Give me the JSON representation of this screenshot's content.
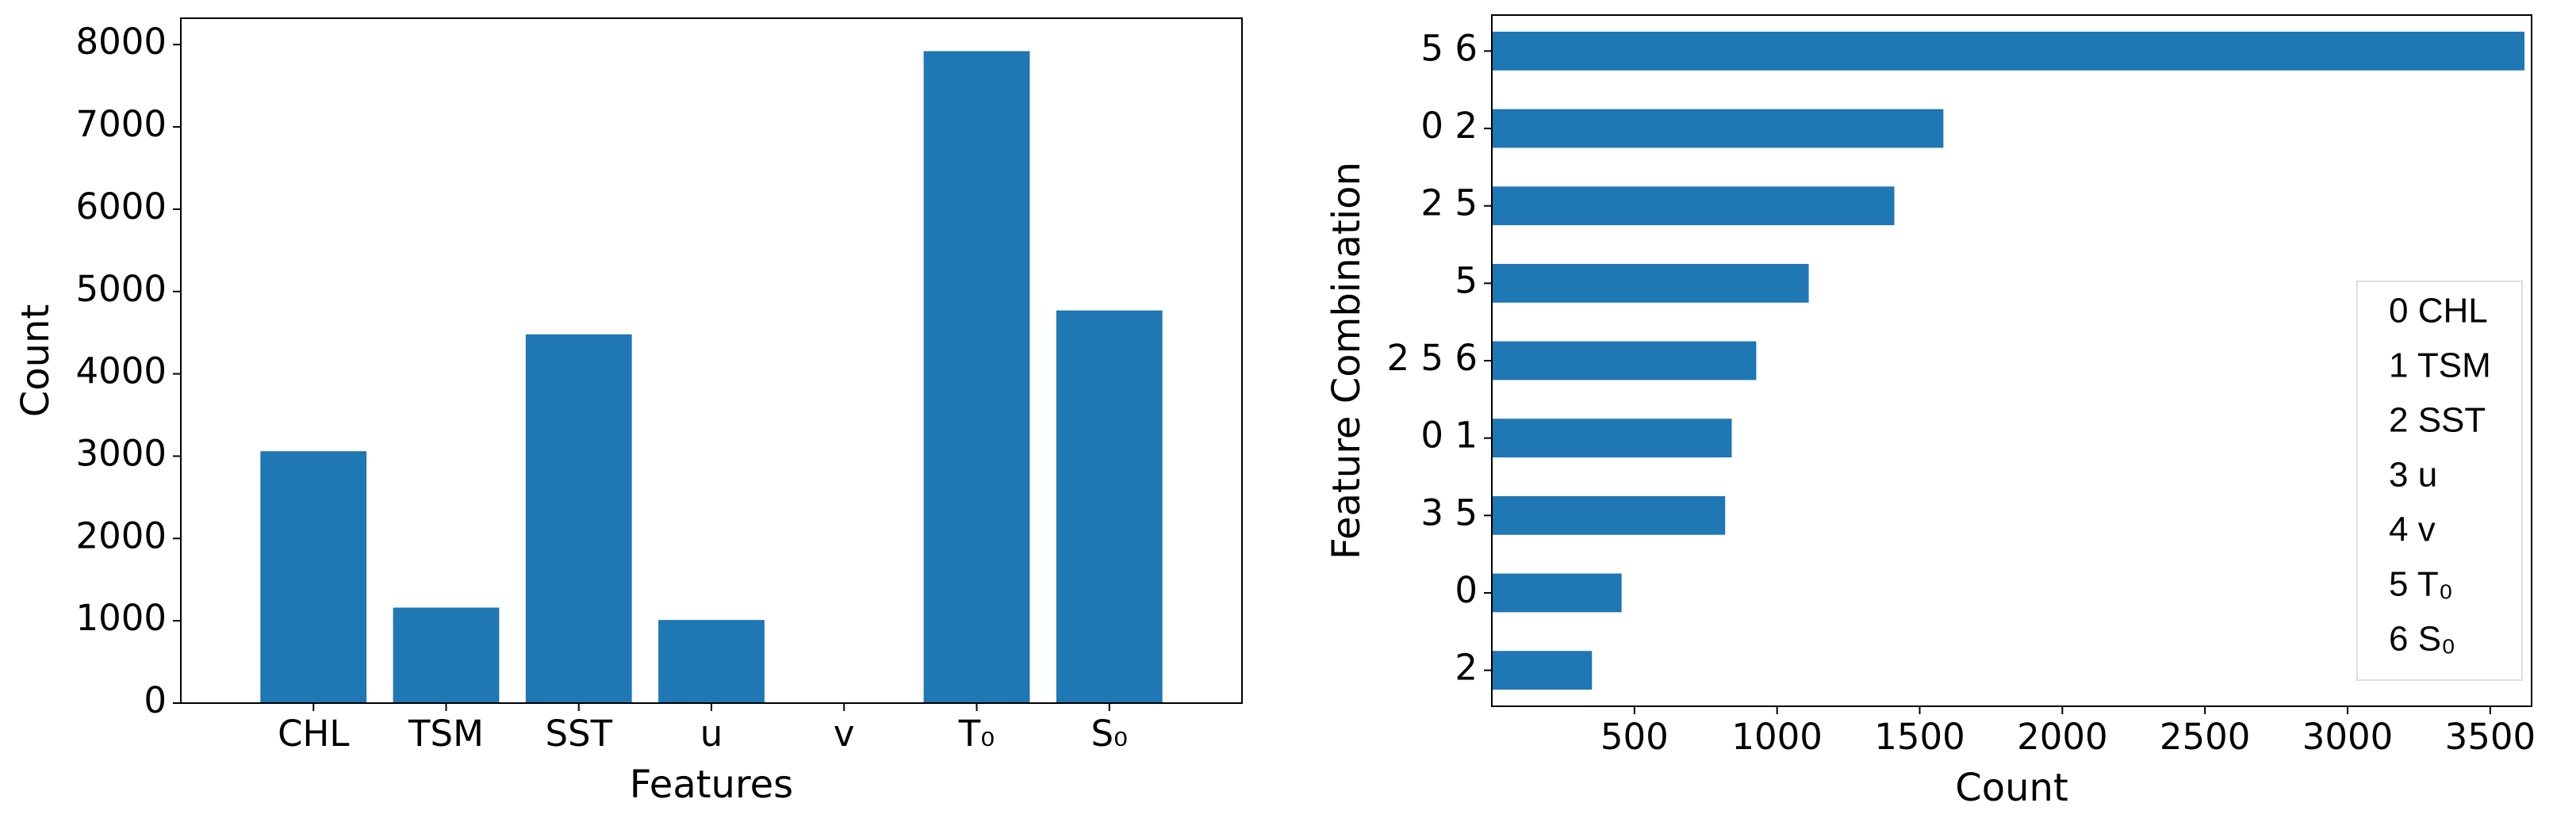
{
  "chart_data": [
    {
      "type": "bar",
      "xlabel": "Features",
      "ylabel": "Count",
      "categories": [
        "CHL",
        "TSM",
        "SST",
        "u",
        "v",
        "T₀",
        "S₀"
      ],
      "values": [
        3060,
        1160,
        4480,
        1010,
        10,
        7920,
        4770
      ],
      "color": "#1f77b4",
      "ylim": [
        0,
        8320
      ],
      "yticks": [
        0,
        1000,
        2000,
        3000,
        4000,
        5000,
        6000,
        7000,
        8000
      ]
    },
    {
      "type": "barh",
      "xlabel": "Count",
      "ylabel": "Feature Combination",
      "categories": [
        "5 6",
        "0 2",
        "2 5",
        "5",
        "2 5 6",
        "0 1",
        "3 5",
        "0",
        "2"
      ],
      "values": [
        3620,
        1583,
        1411,
        1111,
        927,
        841,
        818,
        455,
        351
      ],
      "color": "#1f77b4",
      "xlim": [
        0,
        3645
      ],
      "xticks": [
        500,
        1000,
        1500,
        2000,
        2500,
        3000,
        3500
      ],
      "annotation_lines": [
        "0 CHL",
        "1 TSM",
        "2 SST",
        "3 u",
        "4 v",
        "5 T₀",
        "6 S₀"
      ]
    }
  ]
}
